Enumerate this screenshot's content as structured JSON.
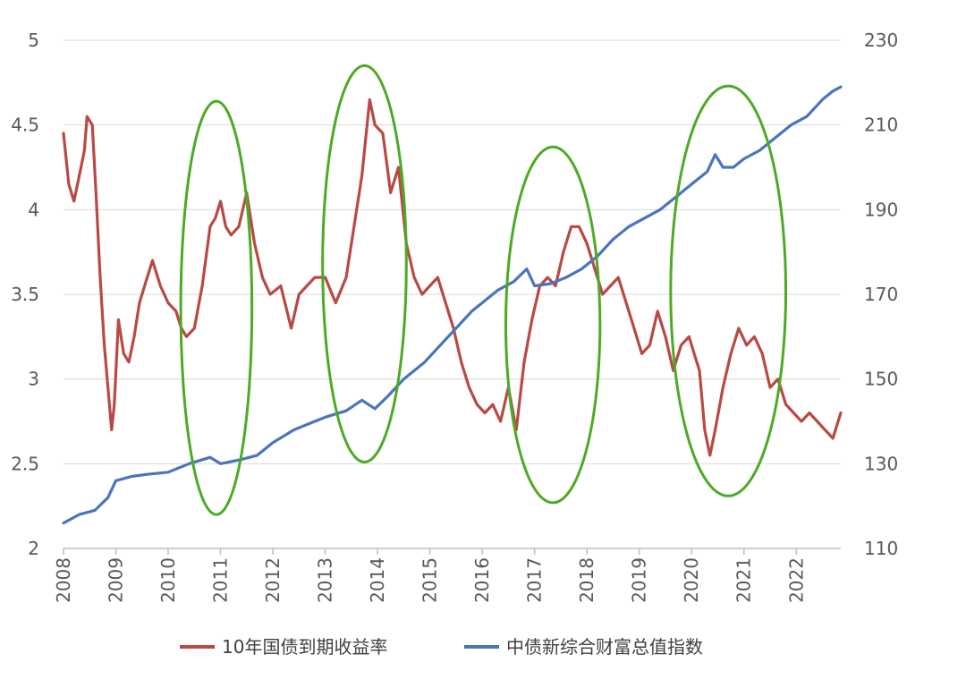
{
  "chart_data": {
    "type": "line",
    "x_ticks": [
      "2008",
      "2009",
      "2010",
      "2011",
      "2012",
      "2013",
      "2014",
      "2015",
      "2016",
      "2017",
      "2018",
      "2019",
      "2020",
      "2021",
      "2022"
    ],
    "y_left_ticks": [
      "2",
      "2.5",
      "3",
      "3.5",
      "4",
      "4.5",
      "5"
    ],
    "y_right_ticks": [
      "110",
      "130",
      "150",
      "170",
      "190",
      "210",
      "230"
    ],
    "ylim_left": [
      2,
      5
    ],
    "ylim_right": [
      110,
      230
    ],
    "xlim": [
      2008.0,
      2022.85
    ],
    "grid": true,
    "legend_position": "bottom",
    "colors": {
      "red": "#b84a45",
      "blue": "#4a75b9",
      "ellipse": "#4daa27",
      "grid": "#d9d9d9"
    },
    "series": [
      {
        "name": "10年国债到期收益率",
        "axis": "left",
        "color": "#b84a45",
        "x": [
          2008.0,
          2008.1,
          2008.2,
          2008.3,
          2008.4,
          2008.45,
          2008.55,
          2008.62,
          2008.7,
          2008.78,
          2008.85,
          2008.92,
          2008.97,
          2009.05,
          2009.15,
          2009.25,
          2009.35,
          2009.45,
          2009.55,
          2009.7,
          2009.85,
          2010.0,
          2010.15,
          2010.25,
          2010.35,
          2010.5,
          2010.65,
          2010.8,
          2010.9,
          2011.0,
          2011.1,
          2011.2,
          2011.35,
          2011.5,
          2011.65,
          2011.8,
          2011.95,
          2012.15,
          2012.35,
          2012.5,
          2012.65,
          2012.8,
          2013.0,
          2013.2,
          2013.4,
          2013.55,
          2013.7,
          2013.85,
          2013.95,
          2014.1,
          2014.25,
          2014.4,
          2014.55,
          2014.7,
          2014.85,
          2015.0,
          2015.15,
          2015.3,
          2015.45,
          2015.6,
          2015.75,
          2015.9,
          2016.05,
          2016.2,
          2016.35,
          2016.5,
          2016.65,
          2016.8,
          2016.95,
          2017.1,
          2017.25,
          2017.4,
          2017.55,
          2017.7,
          2017.85,
          2018.0,
          2018.15,
          2018.3,
          2018.45,
          2018.6,
          2018.75,
          2018.9,
          2019.05,
          2019.2,
          2019.35,
          2019.5,
          2019.65,
          2019.8,
          2019.95,
          2020.05,
          2020.15,
          2020.25,
          2020.35,
          2020.45,
          2020.6,
          2020.75,
          2020.9,
          2021.05,
          2021.2,
          2021.35,
          2021.5,
          2021.65,
          2021.8,
          2021.95,
          2022.1,
          2022.25,
          2022.4,
          2022.55,
          2022.7,
          2022.85
        ],
        "y": [
          4.45,
          4.15,
          4.05,
          4.2,
          4.35,
          4.55,
          4.5,
          4.1,
          3.6,
          3.2,
          2.95,
          2.7,
          2.85,
          3.35,
          3.15,
          3.1,
          3.25,
          3.45,
          3.55,
          3.7,
          3.55,
          3.45,
          3.4,
          3.3,
          3.25,
          3.3,
          3.55,
          3.9,
          3.95,
          4.05,
          3.9,
          3.85,
          3.9,
          4.1,
          3.8,
          3.6,
          3.5,
          3.55,
          3.3,
          3.5,
          3.55,
          3.6,
          3.6,
          3.45,
          3.6,
          3.9,
          4.2,
          4.65,
          4.5,
          4.45,
          4.1,
          4.25,
          3.8,
          3.6,
          3.5,
          3.55,
          3.6,
          3.45,
          3.3,
          3.1,
          2.95,
          2.85,
          2.8,
          2.85,
          2.75,
          2.95,
          2.7,
          3.1,
          3.35,
          3.55,
          3.6,
          3.55,
          3.75,
          3.9,
          3.9,
          3.8,
          3.65,
          3.5,
          3.55,
          3.6,
          3.45,
          3.3,
          3.15,
          3.2,
          3.4,
          3.25,
          3.05,
          3.2,
          3.25,
          3.15,
          3.05,
          2.7,
          2.55,
          2.7,
          2.95,
          3.15,
          3.3,
          3.2,
          3.25,
          3.15,
          2.95,
          3.0,
          2.85,
          2.8,
          2.75,
          2.8,
          2.75,
          2.7,
          2.65,
          2.8
        ]
      },
      {
        "name": "中债新综合财富总值指数",
        "axis": "right",
        "color": "#4a75b9",
        "x": [
          2008.0,
          2008.3,
          2008.6,
          2008.85,
          2009.0,
          2009.3,
          2009.6,
          2010.0,
          2010.4,
          2010.8,
          2011.0,
          2011.4,
          2011.7,
          2012.0,
          2012.4,
          2012.8,
          2013.0,
          2013.4,
          2013.7,
          2013.95,
          2014.2,
          2014.5,
          2014.9,
          2015.2,
          2015.5,
          2015.8,
          2016.0,
          2016.3,
          2016.6,
          2016.85,
          2017.0,
          2017.3,
          2017.6,
          2017.9,
          2018.2,
          2018.5,
          2018.8,
          2019.1,
          2019.4,
          2019.7,
          2020.0,
          2020.3,
          2020.45,
          2020.6,
          2020.8,
          2021.0,
          2021.3,
          2021.6,
          2021.9,
          2022.2,
          2022.5,
          2022.7,
          2022.85
        ],
        "y": [
          116,
          118,
          119,
          122,
          126,
          127,
          127.5,
          128,
          130,
          131.5,
          130,
          131,
          132,
          135,
          138,
          140,
          141,
          142.5,
          145,
          143,
          146,
          150,
          154,
          158,
          162,
          166,
          168,
          171,
          173,
          176,
          172,
          172.5,
          174,
          176,
          179,
          183,
          186,
          188,
          190,
          193,
          196,
          199,
          203,
          200,
          200,
          202,
          204,
          207,
          210,
          212,
          216,
          218,
          219
        ]
      }
    ],
    "annotations": [
      {
        "type": "ellipse",
        "cx": 2010.92,
        "cy_left": 3.42,
        "rx_years": 0.68,
        "ry_left": 1.22
      },
      {
        "type": "ellipse",
        "cx": 2013.75,
        "cy_left": 3.68,
        "rx_years": 0.8,
        "ry_left": 1.17
      },
      {
        "type": "ellipse",
        "cx": 2017.35,
        "cy_left": 3.32,
        "rx_years": 0.9,
        "ry_left": 1.05
      },
      {
        "type": "ellipse",
        "cx": 2020.7,
        "cy_left": 3.52,
        "rx_years": 1.1,
        "ry_left": 1.21
      }
    ]
  }
}
